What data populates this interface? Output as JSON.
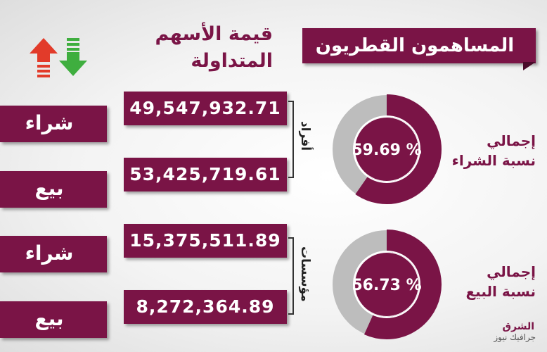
{
  "header": {
    "title": "المساهمون القطريون"
  },
  "column_title": {
    "line1": "قيمة الأسهم",
    "line2": "المتداولة"
  },
  "groups": {
    "individuals": "أفراد",
    "institutions": "مؤسسات"
  },
  "rows": [
    {
      "value": "49,547,932.71",
      "label": "شراء"
    },
    {
      "value": "53,425,719.61",
      "label": "بيع"
    },
    {
      "value": "15,375,511.89",
      "label": "شراء"
    },
    {
      "value": "8,272,364.89",
      "label": "بيع"
    }
  ],
  "donuts": [
    {
      "percent_text": "59.69 %",
      "percent": 59.69,
      "line1": "إجمالي",
      "line2": "نسبة الشراء"
    },
    {
      "percent_text": "56.73 %",
      "percent": 56.73,
      "line1": "إجمالي",
      "line2": "نسبة البيع"
    }
  ],
  "logo": {
    "name": "الشرق",
    "sub": "جرافيك نيوز"
  },
  "colors": {
    "primary": "#7a1446",
    "ring_gray": "#bdbdbd",
    "arrow_up": "#e23b2a",
    "arrow_down": "#3fae3f"
  }
}
